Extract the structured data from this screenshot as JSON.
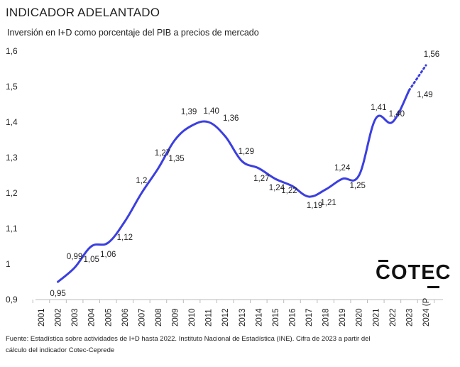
{
  "header": {
    "title": "INDICADOR ADELANTADO",
    "subtitle": "Inversión en I+D como porcentaje del PIB a precios de mercado"
  },
  "logo": {
    "text": "COTEC"
  },
  "footer": {
    "line1": "Fuente: Estadística sobre actividades de I+D hasta 2022. Instituto Nacional de Estadística (INE). Cifra de 2023 a partir del",
    "line2": "cálculo del indicador Cotec-Ceprede"
  },
  "colors": {
    "line": "#3b3fe0",
    "axis": "#bbbbbb",
    "text": "#222222"
  },
  "chart_data": {
    "type": "line",
    "title": "INDICADOR ADELANTADO",
    "subtitle": "Inversión en I+D como porcentaje del PIB a precios de mercado",
    "xlabel": "",
    "ylabel": "",
    "grid": false,
    "ylim": [
      0.9,
      1.6
    ],
    "yticks": [
      "0,9",
      "1",
      "1,1",
      "1,2",
      "1,3",
      "1,4",
      "1,5",
      "1,6"
    ],
    "ytick_values": [
      0.9,
      1.0,
      1.1,
      1.2,
      1.3,
      1.4,
      1.5,
      1.6
    ],
    "categories": [
      "2001",
      "2002",
      "2003",
      "2004",
      "2005",
      "2006",
      "2007",
      "2008",
      "2009",
      "2010",
      "2011",
      "2012",
      "2013",
      "2014",
      "2015",
      "2016",
      "2017",
      "2018",
      "2019",
      "2020",
      "2021",
      "2022",
      "2023",
      "2024 (P"
    ],
    "values": [
      null,
      0.95,
      0.99,
      1.05,
      1.06,
      1.12,
      1.2,
      1.27,
      1.35,
      1.39,
      1.4,
      1.36,
      1.29,
      1.27,
      1.24,
      1.22,
      1.19,
      1.21,
      1.24,
      1.25,
      1.41,
      1.4,
      1.49,
      1.56
    ],
    "data_labels": [
      null,
      "0,95",
      "0,99",
      "1,05",
      "1,06",
      "1,12",
      "1,2",
      "1,27",
      "1,35",
      "1,39",
      "1,40",
      "1,36",
      "1,29",
      "1,27",
      "1,24",
      "1,22",
      "1,19",
      "1,21",
      "1,24",
      "1,25",
      "1,41",
      "1,40",
      "1,49",
      "1,56"
    ],
    "projected_from_index": 22
  }
}
